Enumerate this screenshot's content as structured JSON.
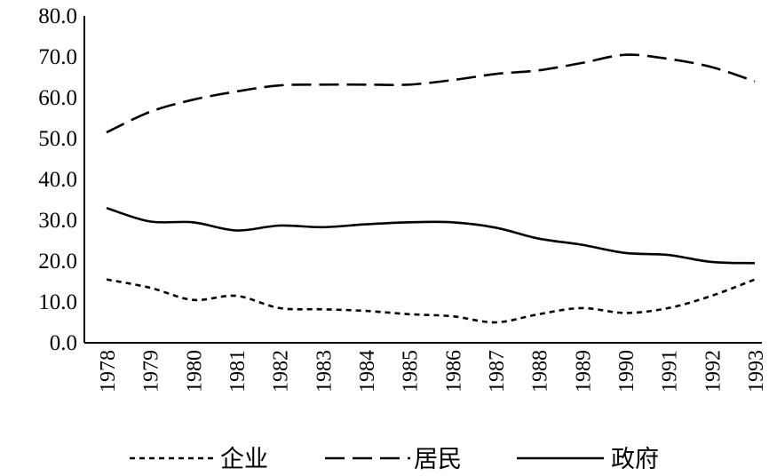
{
  "chart_data": {
    "type": "line",
    "title": "",
    "xlabel": "",
    "ylabel": "",
    "categories": [
      "1978",
      "1979",
      "1980",
      "1981",
      "1982",
      "1983",
      "1984",
      "1985",
      "1986",
      "1987",
      "1988",
      "1989",
      "1990",
      "1991",
      "1992",
      "1993"
    ],
    "y_ticks": [
      "0.0",
      "10.0",
      "20.0",
      "30.0",
      "40.0",
      "50.0",
      "60.0",
      "70.0",
      "80.0"
    ],
    "ylim": [
      0,
      80
    ],
    "grid": false,
    "legend_position": "bottom",
    "series": [
      {
        "name": "企业",
        "style": "dotted",
        "color": "#000000",
        "values": [
          15.5,
          13.5,
          10.5,
          11.5,
          8.5,
          8.2,
          7.8,
          7.0,
          6.5,
          5.0,
          7.0,
          8.5,
          7.3,
          8.5,
          11.5,
          15.5
        ]
      },
      {
        "name": "居民",
        "style": "dashed",
        "color": "#000000",
        "values": [
          51.5,
          56.5,
          59.5,
          61.5,
          63.0,
          63.2,
          63.2,
          63.2,
          64.3,
          65.8,
          66.7,
          68.5,
          70.5,
          69.5,
          67.5,
          64.0
        ]
      },
      {
        "name": "政府",
        "style": "solid",
        "color": "#000000",
        "values": [
          33.0,
          29.7,
          29.5,
          27.5,
          28.7,
          28.3,
          29.0,
          29.5,
          29.5,
          28.2,
          25.5,
          24.0,
          22.0,
          21.5,
          19.8,
          19.5
        ]
      }
    ]
  }
}
